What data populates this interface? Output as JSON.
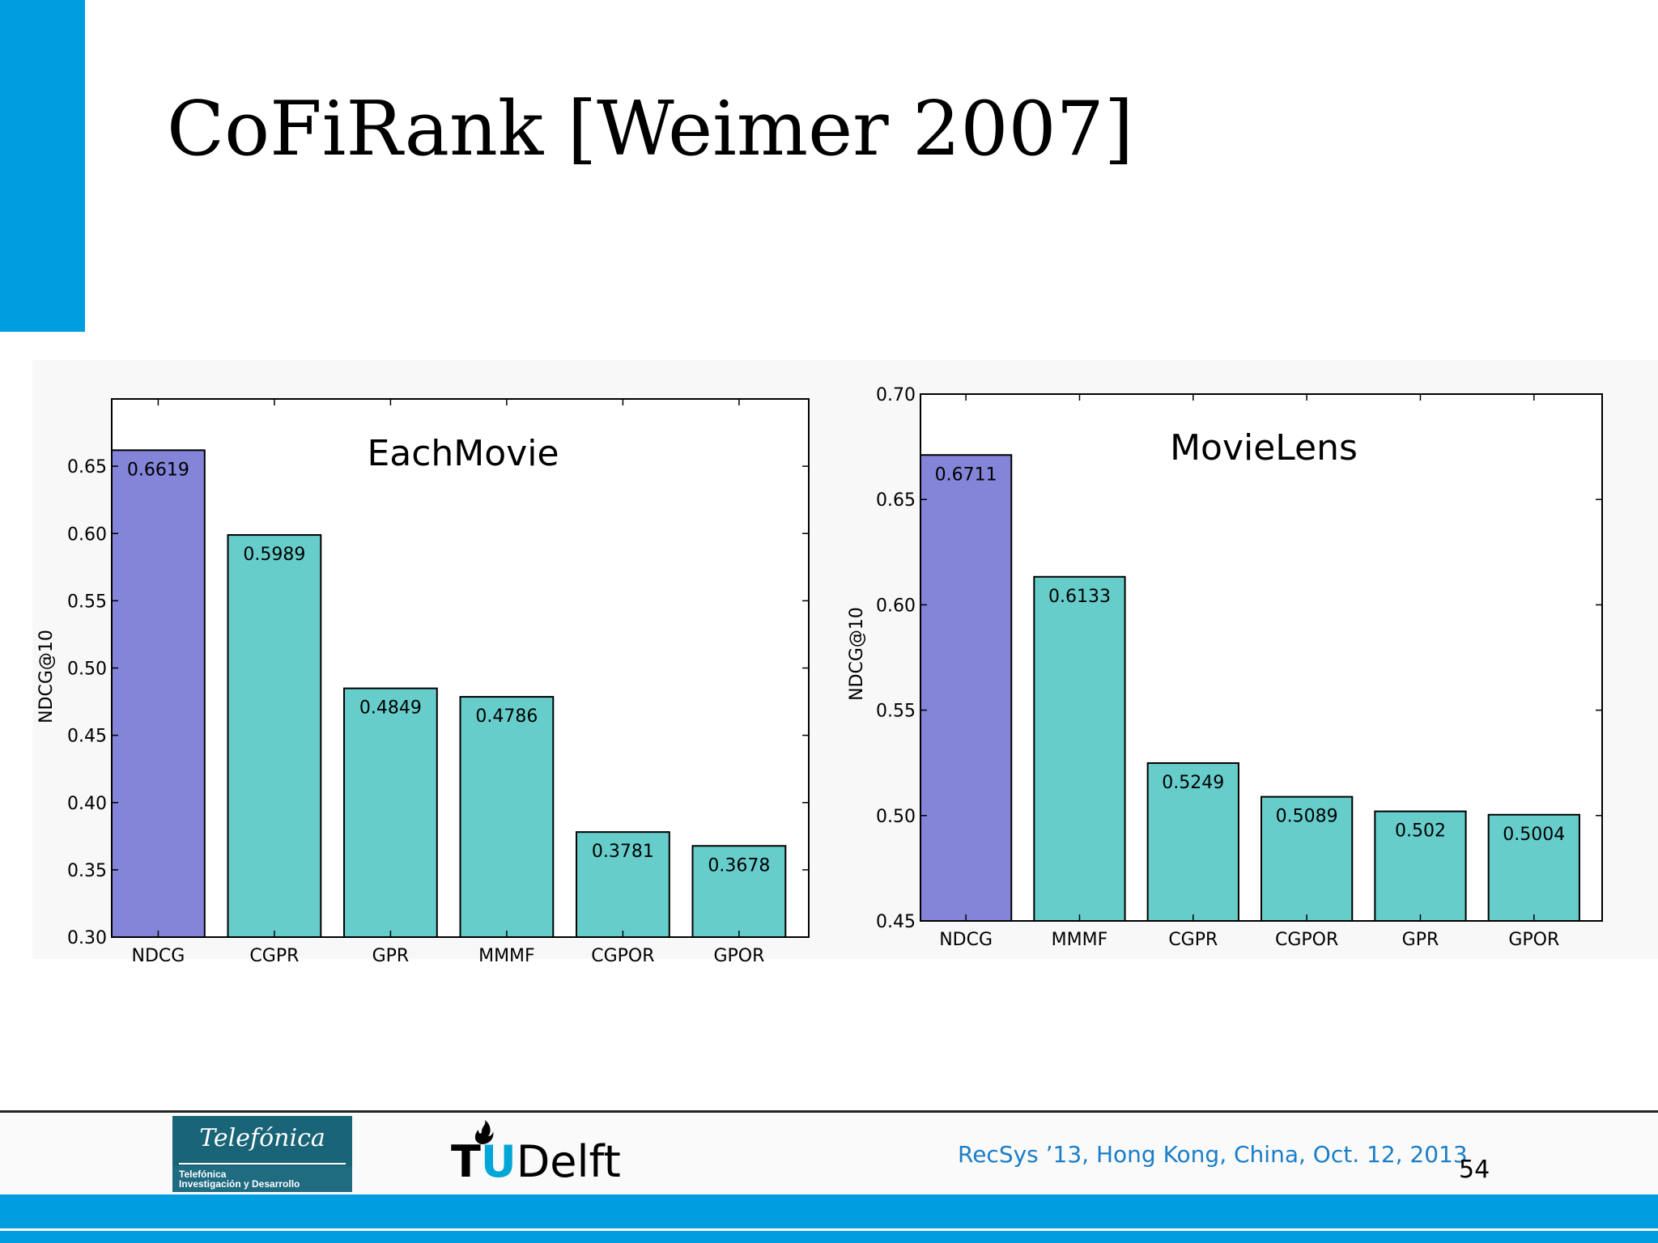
{
  "slide": {
    "title": "CoFiRank [Weimer 2007]",
    "footer_text": "RecSys ’13, Hong Kong, China, Oct. 12, 2013",
    "page_number": "54",
    "accent_color": "#009ee0"
  },
  "logos": {
    "telefonica_name": "Telefónica",
    "telefonica_sub_1": "Telefónica",
    "telefonica_sub_2": "Investigación y Desarrollo",
    "tudelft_t": "T",
    "tudelft_u": "U",
    "tudelft_rest": "Delft"
  },
  "chart_data": [
    {
      "type": "bar",
      "title": "EachMovie",
      "xlabel": "",
      "ylabel": "NDCG@10",
      "categories": [
        "NDCG",
        "CGPR",
        "GPR",
        "MMMF",
        "CGPOR",
        "GPOR"
      ],
      "values": [
        0.6619,
        0.5989,
        0.4849,
        0.4786,
        0.3781,
        0.3678
      ],
      "value_labels": [
        "0.6619",
        "0.5989",
        "0.4849",
        "0.4786",
        "0.3781",
        "0.3678"
      ],
      "ylim": [
        0.3,
        0.7
      ],
      "yticks": [
        0.3,
        0.35,
        0.4,
        0.45,
        0.5,
        0.55,
        0.6,
        0.65
      ],
      "ytick_labels": [
        "0.30",
        "0.35",
        "0.40",
        "0.45",
        "0.50",
        "0.55",
        "0.60",
        "0.65"
      ],
      "colors": [
        "#8484d8",
        "#66cdcb",
        "#66cdcb",
        "#66cdcb",
        "#66cdcb",
        "#66cdcb"
      ],
      "grid": false
    },
    {
      "type": "bar",
      "title": "MovieLens",
      "xlabel": "",
      "ylabel": "NDCG@10",
      "categories": [
        "NDCG",
        "MMMF",
        "CGPR",
        "CGPOR",
        "GPR",
        "GPOR"
      ],
      "values": [
        0.6711,
        0.6133,
        0.5249,
        0.5089,
        0.502,
        0.5004
      ],
      "value_labels": [
        "0.6711",
        "0.6133",
        "0.5249",
        "0.5089",
        "0.502",
        "0.5004"
      ],
      "ylim": [
        0.45,
        0.7
      ],
      "yticks": [
        0.45,
        0.5,
        0.55,
        0.6,
        0.65,
        0.7
      ],
      "ytick_labels": [
        "0.45",
        "0.50",
        "0.55",
        "0.60",
        "0.65",
        "0.70"
      ],
      "colors": [
        "#8484d8",
        "#66cdcb",
        "#66cdcb",
        "#66cdcb",
        "#66cdcb",
        "#66cdcb"
      ],
      "grid": false
    }
  ]
}
